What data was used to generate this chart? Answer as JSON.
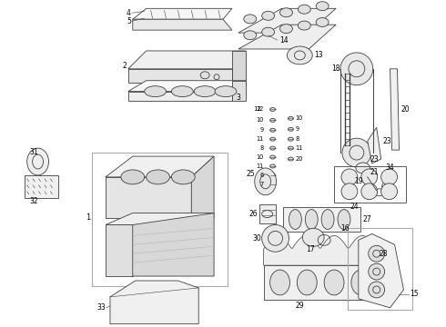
{
  "background_color": "#ffffff",
  "line_color": "#404040",
  "label_color": "#000000",
  "fig_w": 4.9,
  "fig_h": 3.6,
  "dpi": 100
}
